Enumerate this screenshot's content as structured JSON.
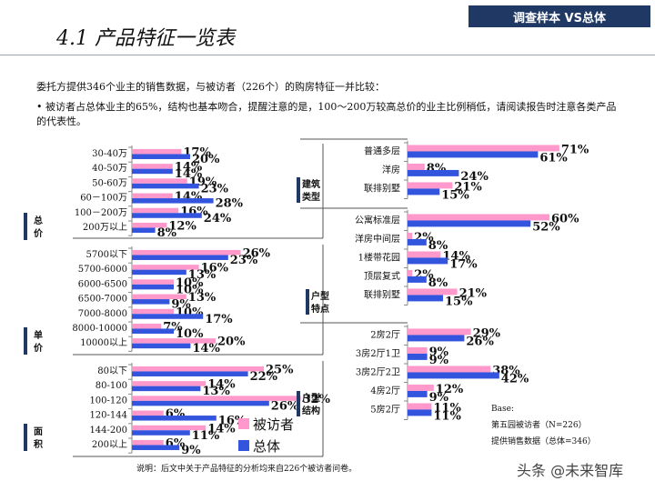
{
  "header": {
    "badge": "调查样本 VS总体",
    "title": "4.1 产品特征一览表",
    "intro": "委托方提供346个业主的销售数据，与被访者（226个）的购房特征一并比较：",
    "bullet": "• 被访者占总体业主的65%，结构也基本吻合，提醒注意的是，100～200万较高总价的业主比例稍低，请阅读报告时注意各类产品的代表性。",
    "footer": "说明：后文中关于产品特征的分析均来自226个被访者问卷。",
    "watermark": "头条 @未来智库"
  },
  "legend": {
    "respondents": "被访者",
    "total": "总体"
  },
  "base_note": {
    "title": "Base:",
    "line1": "第五园被访者（N=226）",
    "line2": "提供销售数据（总体=346）"
  },
  "colors": {
    "respondents": "#ff99cc",
    "total": "#3355dd",
    "label_bar": "#1f3864"
  },
  "chart_data": [
    {
      "type": "bar",
      "group": "总价",
      "categories": [
        "30-40万",
        "40-50万",
        "50-60万",
        "60－100万",
        "100－200万",
        "200万以上"
      ],
      "series": [
        {
          "name": "被访者",
          "values": [
            17,
            14,
            19,
            14,
            16,
            12
          ]
        },
        {
          "name": "总体",
          "values": [
            20,
            14,
            23,
            28,
            24,
            8
          ]
        }
      ]
    },
    {
      "type": "bar",
      "group": "单价",
      "categories": [
        "5700以下",
        "5700-6000",
        "6000-6500",
        "6500-7000",
        "7000-8000",
        "8000-10000",
        "10000以上"
      ],
      "series": [
        {
          "name": "被访者",
          "values": [
            26,
            16,
            10,
            13,
            10,
            7,
            20
          ]
        },
        {
          "name": "总体",
          "values": [
            23,
            13,
            10,
            9,
            17,
            10,
            14
          ]
        }
      ]
    },
    {
      "type": "bar",
      "group": "面积",
      "categories": [
        "80以下",
        "80-100",
        "100-120",
        "120-144",
        "144-200",
        "200以上"
      ],
      "series": [
        {
          "name": "被访者",
          "values": [
            25,
            14,
            32,
            6,
            14,
            6
          ]
        },
        {
          "name": "总体",
          "values": [
            22,
            13,
            26,
            16,
            11,
            9
          ]
        }
      ]
    },
    {
      "type": "bar",
      "group": "建筑类型",
      "categories": [
        "普通多层",
        "洋房",
        "联排别墅"
      ],
      "series": [
        {
          "name": "被访者",
          "values": [
            71,
            8,
            21
          ]
        },
        {
          "name": "总体",
          "values": [
            61,
            24,
            15
          ]
        }
      ]
    },
    {
      "type": "bar",
      "group": "户型特点",
      "categories": [
        "公寓标准层",
        "洋房中间层",
        "1楼带花园",
        "顶层复式",
        "联排别墅"
      ],
      "series": [
        {
          "name": "被访者",
          "values": [
            60,
            2,
            14,
            2,
            21
          ]
        },
        {
          "name": "总体",
          "values": [
            52,
            8,
            17,
            8,
            15
          ]
        }
      ]
    },
    {
      "type": "bar",
      "group": "户型结构",
      "categories": [
        "2房2厅",
        "3房2厅1卫",
        "3房2厅2卫",
        "4房2厅",
        "5房2厅"
      ],
      "series": [
        {
          "name": "被访者",
          "values": [
            29,
            9,
            38,
            12,
            11
          ]
        },
        {
          "name": "总体",
          "values": [
            26,
            9,
            42,
            9,
            11
          ]
        }
      ]
    }
  ]
}
